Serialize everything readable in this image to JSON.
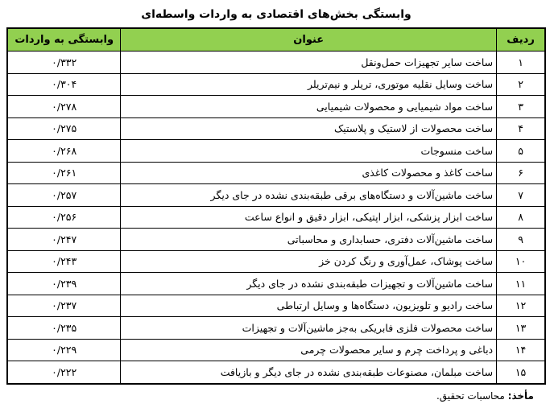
{
  "title": "وابستگی بخش‌های اقتصادی به واردات واسطه‌ای",
  "colors": {
    "header_bg": "#92D050",
    "border": "#000000",
    "text": "#000000"
  },
  "table": {
    "headers": {
      "index": "ردیف",
      "sector": "عنوان",
      "value": "وابستگی به واردات"
    },
    "rows": [
      {
        "index": "۱",
        "sector": "ساخت سایر تجهیزات حمل‌ونقل",
        "value": "۰/۳۳۲"
      },
      {
        "index": "۲",
        "sector": "ساخت وسایل نقلیه موتوری، تریلر و نیم‌تریلر",
        "value": "۰/۳۰۴"
      },
      {
        "index": "۳",
        "sector": "ساخت مواد شیمیایی و محصولات شیمیایی",
        "value": "۰/۲۷۸"
      },
      {
        "index": "۴",
        "sector": "ساخت محصولات از لاستیک و پلاستیک",
        "value": "۰/۲۷۵"
      },
      {
        "index": "۵",
        "sector": "ساخت منسوجات",
        "value": "۰/۲۶۸"
      },
      {
        "index": "۶",
        "sector": "ساخت کاغذ و محصولات کاغذی",
        "value": "۰/۲۶۱"
      },
      {
        "index": "۷",
        "sector": "ساخت ماشین‌آلات و دستگاه‌های برقی طبقه‌بندی نشده در جای دیگر",
        "value": "۰/۲۵۷"
      },
      {
        "index": "۸",
        "sector": "ساخت ابزار پزشکی، ابزار اپتیکی، ابزار دقیق و انواع ساعت",
        "value": "۰/۲۵۶"
      },
      {
        "index": "۹",
        "sector": "ساخت ماشین‌آلات دفتری، حسابداری و محاسباتی",
        "value": "۰/۲۴۷"
      },
      {
        "index": "۱۰",
        "sector": "ساخت پوشاک، عمل‌آوری و رنگ کردن خز",
        "value": "۰/۲۴۳"
      },
      {
        "index": "۱۱",
        "sector": "ساخت ماشین‌آلات و تجهیزات طبقه‌بندی نشده در جای دیگر",
        "value": "۰/۲۳۹"
      },
      {
        "index": "۱۲",
        "sector": "ساخت رادیو و تلویزیون، دستگاه‌ها و وسایل ارتباطی",
        "value": "۰/۲۳۷"
      },
      {
        "index": "۱۳",
        "sector": "ساخت محصولات فلزی فابریکی به‌جز ماشین‌آلات و تجهیزات",
        "value": "۰/۲۳۵"
      },
      {
        "index": "۱۴",
        "sector": "دباغی و پرداخت چرم و سایر محصولات چرمی",
        "value": "۰/۲۲۹"
      },
      {
        "index": "۱۵",
        "sector": "ساخت مبلمان، مصنوعات طبقه‌بندی نشده در جای دیگر و بازیافت",
        "value": "۰/۲۲۲"
      }
    ]
  },
  "footer": {
    "label": "مأخذ:",
    "text": " محاسبات تحقیق."
  },
  "chart_data": {
    "type": "table",
    "title": "وابستگی بخش‌های اقتصادی به واردات واسطه‌ای",
    "columns": [
      "ردیف",
      "عنوان",
      "وابستگی به واردات"
    ],
    "categories": [
      "ساخت سایر تجهیزات حمل‌ونقل",
      "ساخت وسایل نقلیه موتوری، تریلر و نیم‌تریلر",
      "ساخت مواد شیمیایی و محصولات شیمیایی",
      "ساخت محصولات از لاستیک و پلاستیک",
      "ساخت منسوجات",
      "ساخت کاغذ و محصولات کاغذی",
      "ساخت ماشین‌آلات و دستگاه‌های برقی طبقه‌بندی نشده در جای دیگر",
      "ساخت ابزار پزشکی، ابزار اپتیکی، ابزار دقیق و انواع ساعت",
      "ساخت ماشین‌آلات دفتری، حسابداری و محاسباتی",
      "ساخت پوشاک، عمل‌آوری و رنگ کردن خز",
      "ساخت ماشین‌آلات و تجهیزات طبقه‌بندی نشده در جای دیگر",
      "ساخت رادیو و تلویزیون، دستگاه‌ها و وسایل ارتباطی",
      "ساخت محصولات فلزی فابریکی به‌جز ماشین‌آلات و تجهیزات",
      "دباغی و پرداخت چرم و سایر محصولات چرمی",
      "ساخت مبلمان، مصنوعات طبقه‌بندی نشده در جای دیگر و بازیافت"
    ],
    "values": [
      0.332,
      0.304,
      0.278,
      0.275,
      0.268,
      0.261,
      0.257,
      0.256,
      0.247,
      0.243,
      0.239,
      0.237,
      0.235,
      0.229,
      0.222
    ]
  }
}
